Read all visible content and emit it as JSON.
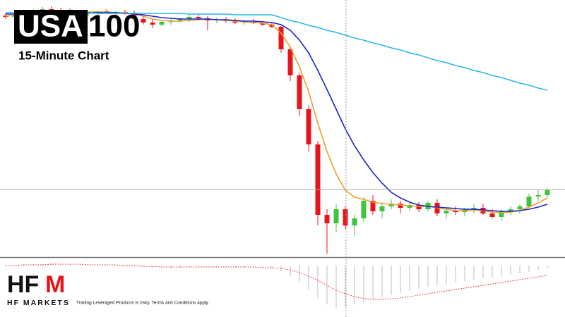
{
  "chart_data": [
    {
      "type": "candlestick",
      "symbol_boxed": "USA",
      "symbol_rest": "100",
      "subtitle": "15-Minute Chart",
      "up_color": "#3ec43e",
      "down_color": "#e8141b",
      "ylim": [
        0,
        365
      ],
      "open": [
        343,
        341,
        344,
        348,
        350,
        352,
        351,
        350,
        348,
        345,
        347,
        349,
        346,
        348,
        347,
        338,
        333,
        330,
        334,
        336,
        338,
        341,
        339,
        336,
        337,
        335,
        333,
        334,
        332,
        330,
        327,
        295,
        258,
        210,
        160,
        60,
        48,
        68,
        45,
        55,
        80,
        65,
        72,
        76,
        70,
        74,
        68,
        77,
        62,
        66,
        64,
        68,
        70,
        62,
        57,
        65,
        68,
        72,
        86,
        88
      ],
      "high": [
        347,
        346,
        350,
        352,
        355,
        356,
        354,
        353,
        351,
        349,
        350,
        352,
        350,
        351,
        350,
        342,
        338,
        336,
        338,
        340,
        345,
        344,
        342,
        340,
        341,
        339,
        337,
        338,
        336,
        334,
        328,
        300,
        262,
        215,
        165,
        68,
        75,
        72,
        60,
        85,
        88,
        78,
        82,
        80,
        78,
        78,
        80,
        82,
        70,
        72,
        70,
        75,
        76,
        68,
        68,
        72,
        75,
        90,
        95,
        98
      ],
      "low": [
        338,
        339,
        342,
        346,
        348,
        349,
        347,
        346,
        343,
        342,
        344,
        345,
        343,
        344,
        335,
        330,
        325,
        328,
        330,
        333,
        334,
        336,
        322,
        332,
        333,
        331,
        330,
        331,
        328,
        325,
        290,
        250,
        200,
        150,
        45,
        5,
        35,
        40,
        30,
        50,
        60,
        55,
        68,
        62,
        66,
        64,
        65,
        58,
        55,
        60,
        58,
        62,
        60,
        55,
        52,
        60,
        62,
        70,
        80,
        85
      ],
      "close": [
        341,
        344,
        348,
        350,
        352,
        351,
        350,
        348,
        345,
        347,
        349,
        346,
        348,
        347,
        338,
        333,
        330,
        334,
        336,
        338,
        341,
        339,
        336,
        337,
        335,
        333,
        334,
        332,
        330,
        327,
        295,
        258,
        210,
        160,
        60,
        48,
        68,
        45,
        55,
        80,
        65,
        72,
        76,
        70,
        74,
        68,
        77,
        62,
        66,
        64,
        68,
        70,
        62,
        57,
        65,
        68,
        72,
        86,
        88,
        95
      ],
      "series": [
        {
          "color": "#f39a2a",
          "values": [
            342,
            343,
            344,
            346,
            348,
            350,
            350,
            350,
            349,
            348,
            348,
            348,
            347,
            347,
            345,
            342,
            338,
            336,
            335,
            335,
            336,
            337,
            338,
            337,
            336,
            335,
            334,
            333,
            332,
            330,
            318,
            298,
            270,
            235,
            190,
            150,
            118,
            95,
            85,
            82,
            78,
            76,
            75,
            74,
            73,
            72,
            72,
            70,
            68,
            66,
            66,
            67,
            66,
            64,
            63,
            64,
            66,
            71,
            77,
            84
          ]
        },
        {
          "color": "#1c22c4",
          "values": [
            345,
            345,
            345,
            345,
            346,
            346,
            347,
            347,
            347,
            347,
            347,
            347,
            347,
            346,
            345,
            344,
            342,
            340,
            339,
            338,
            338,
            338,
            338,
            337,
            337,
            336,
            335,
            335,
            334,
            333,
            330,
            322,
            308,
            290,
            265,
            238,
            210,
            182,
            158,
            138,
            120,
            105,
            92,
            84,
            78,
            74,
            72,
            71,
            70,
            69,
            68,
            68,
            67,
            66,
            65,
            65,
            66,
            68,
            71,
            75
          ]
        },
        {
          "color": "#2ab4f0",
          "values": [
            347,
            347,
            347,
            347,
            347,
            347,
            347,
            347,
            347,
            347,
            346,
            346,
            346,
            346,
            346,
            346,
            346,
            346,
            346,
            346,
            345,
            345,
            345,
            345,
            345,
            344,
            344,
            344,
            344,
            344,
            340,
            336,
            333,
            329,
            326,
            322,
            319,
            315,
            311,
            308,
            304,
            301,
            297,
            294,
            290,
            287,
            283,
            279,
            276,
            272,
            269,
            265,
            262,
            258,
            255,
            251,
            247,
            244,
            240,
            237
          ]
        }
      ]
    },
    {
      "type": "oscillator",
      "color": "#c8c8c8",
      "ylim": [
        -65,
        5
      ],
      "values": [
        1,
        1,
        2,
        2,
        2,
        3,
        2,
        2,
        1,
        1,
        1,
        1,
        0,
        0,
        -1,
        -2,
        -3,
        -3,
        -3,
        -3,
        -2,
        -2,
        -2,
        -2,
        -2,
        -2,
        -3,
        -3,
        -3,
        -4,
        -8,
        -15,
        -24,
        -34,
        -46,
        -55,
        -60,
        -58,
        -55,
        -52,
        -48,
        -45,
        -42,
        -39,
        -36,
        -33,
        -30,
        -28,
        -26,
        -24,
        -22,
        -20,
        -18,
        -17,
        -15,
        -13,
        -11,
        -9,
        -6,
        -4
      ],
      "signal": {
        "color": "#e8141b",
        "values": [
          0,
          0,
          1,
          1,
          1,
          2,
          2,
          2,
          2,
          1,
          1,
          1,
          1,
          0,
          0,
          -1,
          -1,
          -2,
          -2,
          -2,
          -2,
          -2,
          -2,
          -2,
          -2,
          -2,
          -2,
          -2,
          -3,
          -3,
          -4,
          -6,
          -10,
          -15,
          -21,
          -28,
          -35,
          -40,
          -44,
          -47,
          -48,
          -48,
          -47,
          -46,
          -44,
          -42,
          -40,
          -38,
          -36,
          -34,
          -32,
          -30,
          -28,
          -26,
          -24,
          -22,
          -20,
          -18,
          -16,
          -14
        ]
      }
    }
  ],
  "brand": {
    "logo_plain": "HF",
    "logo_mark": "M",
    "name": "HF MARKETS",
    "disclaimer": "Trading Leveraged Products is risky. Terms and Conditions apply."
  }
}
